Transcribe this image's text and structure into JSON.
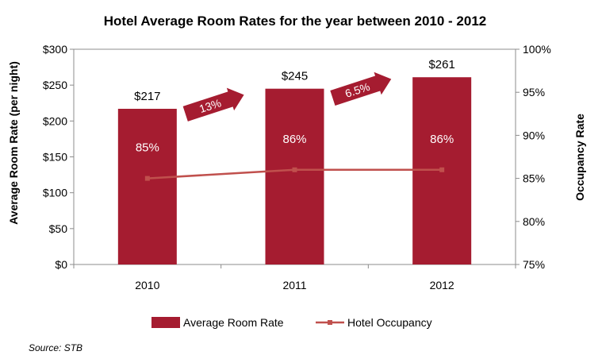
{
  "chart_data": {
    "type": "bar",
    "title": "Hotel Average Room Rates for the year between 2010 - 2012",
    "categories": [
      "2010",
      "2011",
      "2012"
    ],
    "xlabel": "",
    "ylabel": "Average Room Rate (per night)",
    "y2label": "Occupancy Rate",
    "ylim": [
      0,
      300
    ],
    "y2lim": [
      75,
      100
    ],
    "y_ticks": [
      "$0",
      "$50",
      "$100",
      "$150",
      "$200",
      "$250",
      "$300"
    ],
    "y2_ticks": [
      "75%",
      "80%",
      "85%",
      "90%",
      "95%",
      "100%"
    ],
    "series": [
      {
        "name": "Average Room Rate",
        "type": "bar",
        "axis": "left",
        "color": "#A51C30",
        "values": [
          217,
          245,
          261
        ],
        "labels": [
          "$217",
          "$245",
          "$261"
        ]
      },
      {
        "name": "Hotel Occupancy",
        "type": "line",
        "axis": "right",
        "color": "#C0504D",
        "values": [
          85,
          86,
          86
        ],
        "labels": [
          "85%",
          "86%",
          "86%"
        ]
      }
    ],
    "growth_annotations": [
      {
        "label": "13%",
        "from": "2010",
        "to": "2011"
      },
      {
        "label": "6.5%",
        "from": "2011",
        "to": "2012"
      }
    ],
    "legend_position": "bottom",
    "grid": false
  },
  "source": "Source: STB"
}
